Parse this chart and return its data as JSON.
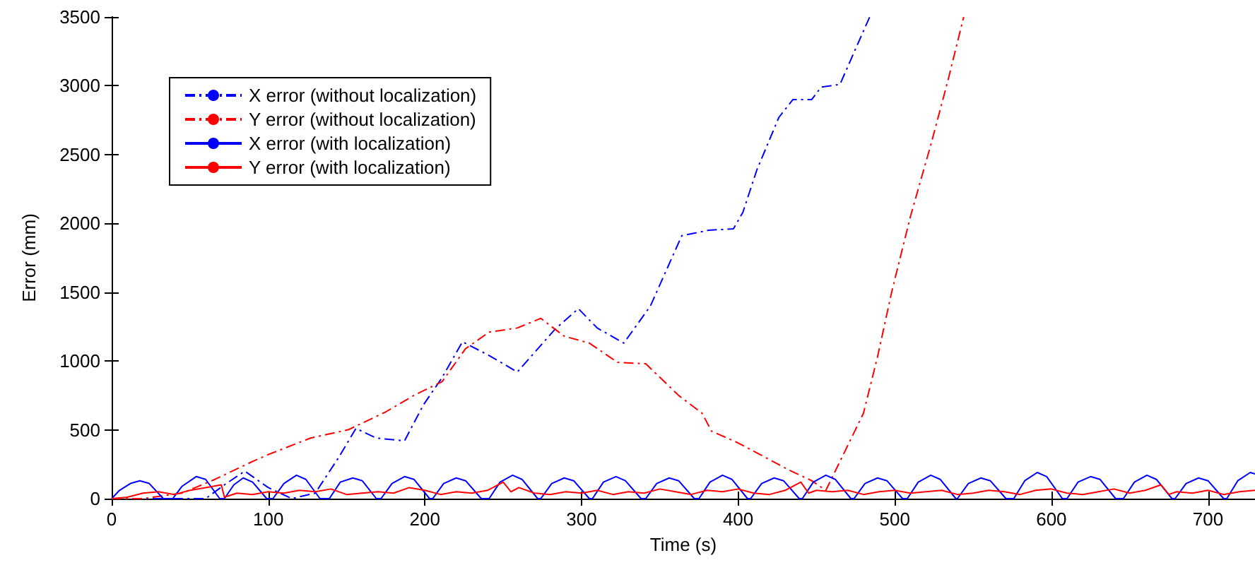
{
  "chart_data": {
    "type": "line",
    "xlabel": "Time (s)",
    "ylabel": "Error (mm)",
    "xlim": [
      0,
      730
    ],
    "xticks": [
      0,
      100,
      200,
      300,
      400,
      500,
      600,
      700
    ],
    "ylim": [
      0,
      3500
    ],
    "yticks": [
      0,
      500,
      1000,
      1500,
      2000,
      2500,
      3000,
      3500
    ],
    "grid": false,
    "legend": "top left",
    "marker": "none",
    "series": [
      {
        "name": "X error (without localization)",
        "color": "#0000ff",
        "line_style": "dashdot",
        "x": [
          0,
          60,
          72,
          85,
          100,
          115,
          130,
          145,
          156,
          169,
          187,
          199,
          211,
          224,
          241,
          259,
          283,
          298,
          310,
          327,
          344,
          364,
          381,
          397,
          403,
          412,
          426,
          435,
          447,
          453,
          465,
          477,
          484
        ],
        "values": [
          0,
          0,
          100,
          200,
          80,
          0,
          40,
          300,
          510,
          440,
          420,
          680,
          880,
          1140,
          1040,
          920,
          1230,
          1380,
          1240,
          1130,
          1400,
          1910,
          1950,
          1960,
          2080,
          2390,
          2770,
          2900,
          2900,
          2990,
          3010,
          3320,
          3500
        ]
      },
      {
        "name": "Y error (without localization)",
        "color": "#ff0000",
        "line_style": "dashdot",
        "x": [
          0,
          20,
          45,
          66,
          90,
          100,
          127,
          151,
          175,
          193,
          211,
          226,
          241,
          259,
          274,
          289,
          305,
          323,
          341,
          362,
          377,
          383,
          399,
          414,
          432,
          447,
          456,
          465,
          480,
          489,
          498,
          510,
          523,
          534,
          544
        ],
        "values": [
          0,
          0,
          40,
          140,
          270,
          320,
          440,
          500,
          630,
          750,
          850,
          1090,
          1210,
          1240,
          1310,
          1180,
          1130,
          990,
          980,
          750,
          620,
          490,
          410,
          320,
          210,
          130,
          60,
          270,
          620,
          1030,
          1500,
          2050,
          2570,
          3040,
          3500
        ]
      },
      {
        "name": "X error (with localization)",
        "color": "#0000ff",
        "line_style": "solid",
        "x": [
          0,
          5,
          12,
          18,
          24,
          33,
          39,
          45,
          54,
          60,
          69,
          72,
          78,
          84,
          90,
          99,
          103,
          110,
          118,
          124,
          133,
          139,
          146,
          154,
          160,
          169,
          172,
          179,
          187,
          193,
          203,
          205,
          212,
          220,
          226,
          236,
          241,
          248,
          256,
          262,
          272,
          274,
          281,
          289,
          295,
          305,
          307,
          314,
          322,
          328,
          338,
          341,
          348,
          356,
          362,
          372,
          375,
          382,
          390,
          396,
          406,
          408,
          415,
          423,
          429,
          439,
          441,
          448,
          456,
          462,
          472,
          474,
          481,
          489,
          495,
          505,
          508,
          515,
          523,
          529,
          539,
          540,
          547,
          555,
          561,
          571,
          576,
          583,
          591,
          597,
          607,
          610,
          617,
          625,
          631,
          641,
          646,
          653,
          661,
          667,
          677,
          679,
          686,
          694,
          700,
          710,
          712,
          719,
          727,
          730
        ],
        "values": [
          0,
          60,
          110,
          130,
          110,
          0,
          0,
          90,
          160,
          140,
          0,
          0,
          100,
          150,
          120,
          0,
          0,
          110,
          170,
          140,
          0,
          0,
          120,
          150,
          130,
          0,
          0,
          110,
          160,
          140,
          0,
          0,
          110,
          150,
          130,
          0,
          0,
          120,
          170,
          140,
          0,
          0,
          110,
          150,
          130,
          0,
          0,
          120,
          160,
          130,
          0,
          0,
          110,
          150,
          130,
          0,
          0,
          120,
          170,
          140,
          0,
          0,
          110,
          150,
          130,
          0,
          0,
          120,
          170,
          140,
          0,
          0,
          110,
          150,
          130,
          0,
          0,
          120,
          170,
          140,
          0,
          0,
          110,
          150,
          130,
          0,
          0,
          130,
          190,
          160,
          0,
          0,
          120,
          160,
          140,
          0,
          0,
          120,
          170,
          140,
          0,
          0,
          110,
          150,
          130,
          0,
          0,
          130,
          190,
          180
        ]
      },
      {
        "name": "Y error (with localization)",
        "color": "#ff0000",
        "line_style": "solid",
        "x": [
          0,
          10,
          20,
          30,
          40,
          50,
          60,
          70,
          72,
          80,
          90,
          100,
          110,
          120,
          130,
          140,
          150,
          160,
          170,
          180,
          190,
          200,
          210,
          220,
          230,
          240,
          250,
          255,
          260,
          270,
          280,
          290,
          300,
          310,
          320,
          330,
          340,
          350,
          360,
          370,
          380,
          390,
          400,
          410,
          420,
          430,
          440,
          445,
          450,
          460,
          470,
          480,
          490,
          500,
          510,
          520,
          530,
          540,
          550,
          560,
          570,
          580,
          590,
          600,
          610,
          620,
          630,
          640,
          650,
          660,
          670,
          675,
          680,
          690,
          700,
          710,
          720,
          730
        ],
        "values": [
          0,
          10,
          40,
          50,
          30,
          60,
          80,
          100,
          10,
          40,
          30,
          50,
          40,
          60,
          50,
          70,
          30,
          40,
          50,
          40,
          80,
          60,
          30,
          50,
          40,
          60,
          120,
          50,
          80,
          40,
          30,
          50,
          40,
          60,
          30,
          50,
          40,
          70,
          50,
          30,
          60,
          50,
          70,
          40,
          30,
          60,
          120,
          40,
          60,
          50,
          60,
          30,
          50,
          60,
          40,
          50,
          60,
          30,
          40,
          60,
          50,
          30,
          60,
          70,
          40,
          30,
          50,
          70,
          40,
          60,
          100,
          30,
          50,
          40,
          60,
          30,
          50,
          60
        ]
      }
    ]
  }
}
